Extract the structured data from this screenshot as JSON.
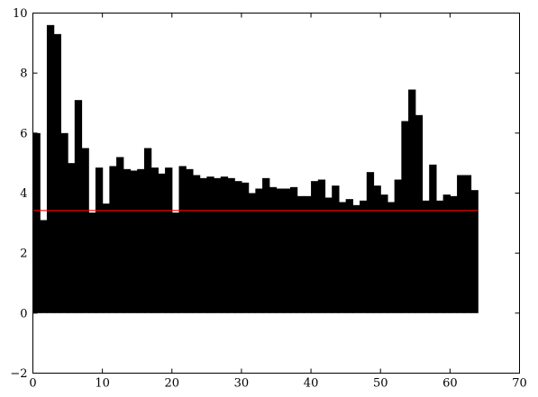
{
  "chart_data": {
    "type": "bar",
    "title": "",
    "xlabel": "",
    "ylabel": "",
    "xlim": [
      0,
      70
    ],
    "ylim": [
      -2,
      10
    ],
    "grid": false,
    "xticks": [
      0,
      10,
      20,
      30,
      40,
      50,
      60,
      70
    ],
    "yticks": [
      -2,
      0,
      2,
      4,
      6,
      8,
      10
    ],
    "xtick_labels": [
      "0",
      "10",
      "20",
      "30",
      "40",
      "50",
      "60",
      "70"
    ],
    "ytick_labels": [
      "−2",
      "0",
      "2",
      "4",
      "6",
      "8",
      "10"
    ],
    "bar_width": 1,
    "x": [
      0,
      1,
      2,
      3,
      4,
      5,
      6,
      7,
      8,
      9,
      10,
      11,
      12,
      13,
      14,
      15,
      16,
      17,
      18,
      19,
      20,
      21,
      22,
      23,
      24,
      25,
      26,
      27,
      28,
      29,
      30,
      31,
      32,
      33,
      34,
      35,
      36,
      37,
      38,
      39,
      40,
      41,
      42,
      43,
      44,
      45,
      46,
      47,
      48,
      49,
      50,
      51,
      52,
      53,
      54,
      55,
      56,
      57,
      58,
      59,
      60,
      61,
      62,
      63
    ],
    "values": [
      6.0,
      3.1,
      9.6,
      9.3,
      6.0,
      5.0,
      7.1,
      5.5,
      3.35,
      4.85,
      3.65,
      4.9,
      5.2,
      4.8,
      4.75,
      4.8,
      5.5,
      4.85,
      4.65,
      4.85,
      3.35,
      4.9,
      4.8,
      4.6,
      4.5,
      4.55,
      4.5,
      4.55,
      4.5,
      4.4,
      4.35,
      4.0,
      4.15,
      4.5,
      4.2,
      4.15,
      4.15,
      4.2,
      3.9,
      3.9,
      4.4,
      4.45,
      3.85,
      4.25,
      3.7,
      3.8,
      3.6,
      3.75,
      4.7,
      4.25,
      3.95,
      3.7,
      4.45,
      6.4,
      7.45,
      6.6,
      3.75,
      4.95,
      3.75,
      3.95,
      3.9,
      4.6,
      4.6,
      4.1
    ],
    "reference_line": {
      "y": 3.42,
      "x_range": [
        0,
        64
      ],
      "color": "#ff0000"
    },
    "bar_color": "#000000"
  }
}
